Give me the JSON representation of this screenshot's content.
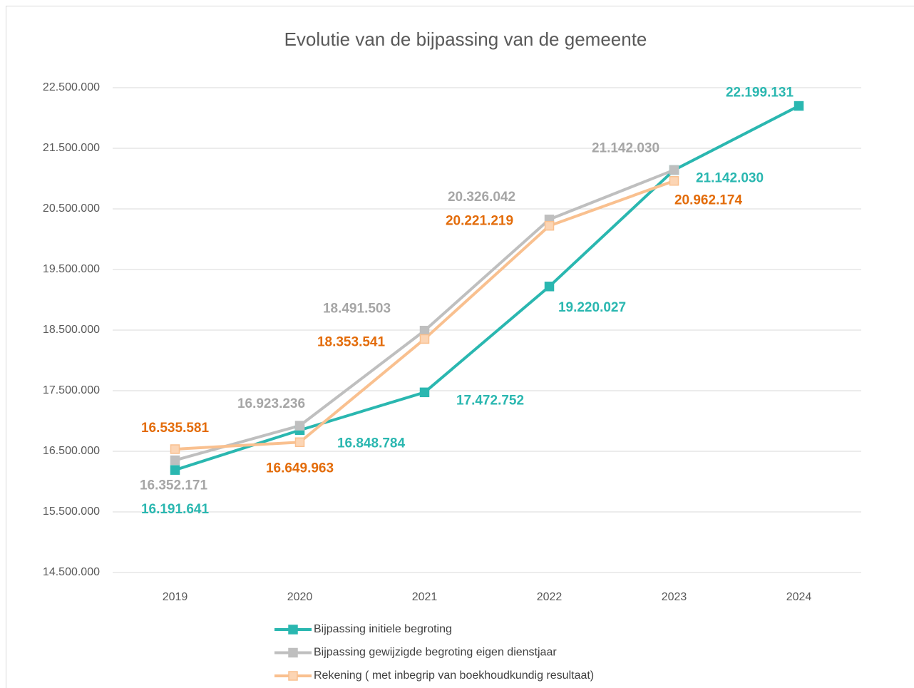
{
  "chart_data": {
    "type": "line",
    "title": "Evolutie van de bijpassing van de gemeente",
    "categories": [
      "2019",
      "2020",
      "2021",
      "2022",
      "2023",
      "2024"
    ],
    "series": [
      {
        "name": "Bijpassing initiele begroting",
        "color": "#2ab7b0",
        "label_color": "#2ab7b0",
        "marker_fill": "#2ab7b0",
        "values": [
          16191641,
          16848784,
          17472752,
          19220027,
          21142030,
          22199131
        ],
        "value_labels": [
          "16.191.641",
          "16.848.784",
          "17.472.752",
          "19.220.027",
          "21.142.030",
          "22.199.131"
        ]
      },
      {
        "name": "Bijpassing gewijzigde begroting eigen dienstjaar",
        "color": "#bfbfbf",
        "label_color": "#a6a6a6",
        "marker_fill": "#bfbfbf",
        "values": [
          16352171,
          16923236,
          18491503,
          20326042,
          21142030,
          null
        ],
        "value_labels": [
          "16.352.171",
          "16.923.236",
          "18.491.503",
          "20.326.042",
          "21.142.030",
          null
        ]
      },
      {
        "name": "Rekening ( met inbegrip van boekhoudkundig resultaat)",
        "color": "#f9c08f",
        "label_color": "#e36c0a",
        "marker_fill": "#fcd5b4",
        "values": [
          16535581,
          16649963,
          18353541,
          20221219,
          20962174,
          null
        ],
        "value_labels": [
          "16.535.581",
          "16.649.963",
          "18.353.541",
          "20.221.219",
          "20.962.174",
          null
        ]
      }
    ],
    "ylim": [
      14500000,
      22500000
    ],
    "yticks": [
      {
        "value": 14500000,
        "label": "14.500.000"
      },
      {
        "value": 15500000,
        "label": "15.500.000"
      },
      {
        "value": 16500000,
        "label": "16.500.000"
      },
      {
        "value": 17500000,
        "label": "17.500.000"
      },
      {
        "value": 18500000,
        "label": "18.500.000"
      },
      {
        "value": 19500000,
        "label": "19.500.000"
      },
      {
        "value": 20500000,
        "label": "20.500.000"
      },
      {
        "value": 21500000,
        "label": "21.500.000"
      },
      {
        "value": 22500000,
        "label": "22.500.000"
      }
    ],
    "grid": true
  }
}
